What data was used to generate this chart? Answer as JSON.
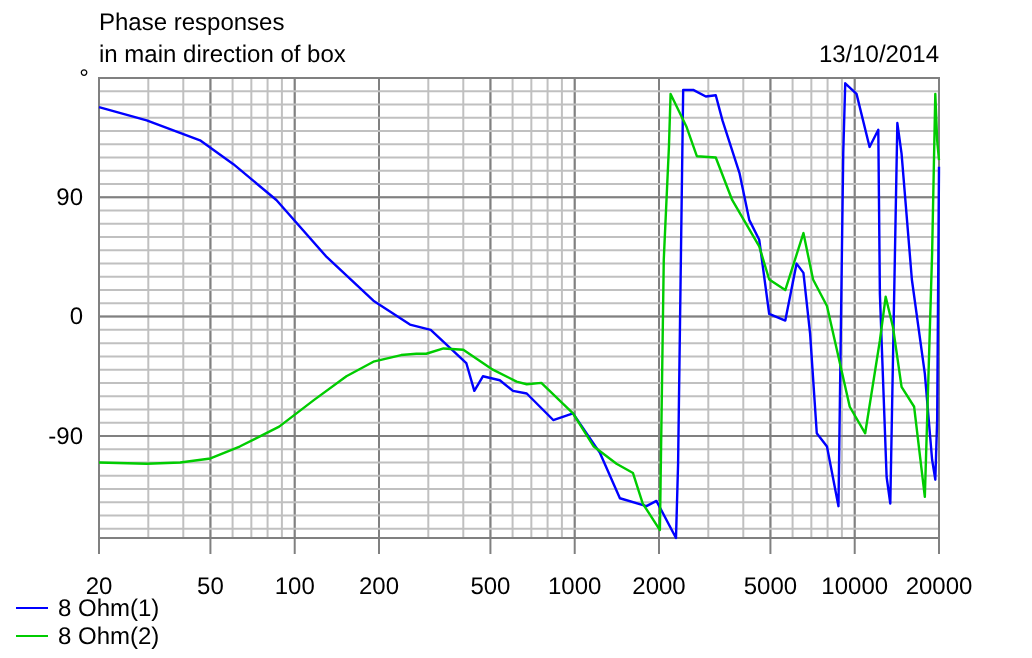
{
  "chart_data": {
    "type": "line",
    "title": "Phase responses",
    "subtitle": "in main direction of box",
    "ylabel": "°",
    "annotations": [
      "13/10/2014"
    ],
    "xlim": [
      20,
      20000
    ],
    "xticks": [
      20,
      50,
      100,
      200,
      500,
      1000,
      2000,
      5000,
      10000,
      20000
    ],
    "ylim": [
      -167,
      180
    ],
    "yticks": [
      90,
      0,
      -90
    ],
    "log": "x",
    "grid": true,
    "legend": "bottom left",
    "line_style": "solid",
    "series": [
      {
        "name": "8 Ohm(1)",
        "color": "#0000ff",
        "x": [
          20,
          29.6,
          45.9,
          60.4,
          86,
          130,
          191,
          258,
          306,
          410,
          438,
          470,
          540,
          602,
          674,
          838,
          986,
          1232,
          1450,
          1804,
          1958,
          2300,
          2340,
          2440,
          2650,
          2940,
          3190,
          3370,
          3880,
          4200,
          4560,
          4950,
          5650,
          6200,
          6560,
          6930,
          7320,
          7960,
          8750,
          9100,
          9250,
          10150,
          11300,
          12140,
          12300,
          13000,
          13400,
          14200,
          14700,
          16000,
          17800,
          18900,
          19400,
          19700,
          20000
        ],
        "values": [
          158,
          148,
          133,
          115,
          88,
          45,
          12,
          -6,
          -10,
          -35,
          -56,
          -45,
          -48,
          -56,
          -58,
          -78,
          -73,
          -103,
          -137,
          -143,
          -139,
          -167,
          -111,
          171,
          171,
          166,
          167,
          148,
          108,
          73,
          58,
          2,
          -3,
          40,
          33,
          -13,
          -88,
          -98,
          -143,
          123,
          176,
          168,
          128,
          141,
          17,
          -121,
          -141,
          146,
          123,
          28,
          -43,
          -108,
          -123,
          -78,
          113
        ]
      },
      {
        "name": "8 Ohm(2)",
        "color": "#00cc00",
        "x": [
          20,
          29.6,
          39,
          50,
          63.6,
          88,
          117,
          153,
          191,
          240,
          272,
          295,
          340,
          400,
          510,
          620,
          674,
          760,
          986,
          1170,
          1410,
          1615,
          1750,
          2015,
          2080,
          2170,
          2200,
          2510,
          2730,
          3190,
          3650,
          4560,
          4950,
          5650,
          6560,
          7100,
          7960,
          9600,
          10900,
          12300,
          12900,
          13700,
          14700,
          16300,
          17800,
          18900,
          19400,
          19700,
          20000
        ],
        "values": [
          -110,
          -111,
          -110,
          -107,
          -98,
          -83,
          -63,
          -45,
          -34,
          -29,
          -28,
          -28,
          -24,
          -25,
          -40,
          -49,
          -51,
          -50,
          -73,
          -98,
          -111,
          -118,
          -141,
          -161,
          43,
          128,
          168,
          143,
          121,
          120,
          88,
          53,
          28,
          20,
          63,
          28,
          8,
          -68,
          -88,
          -18,
          15,
          -8,
          -53,
          -68,
          -136,
          48,
          168,
          133,
          118
        ]
      }
    ]
  }
}
